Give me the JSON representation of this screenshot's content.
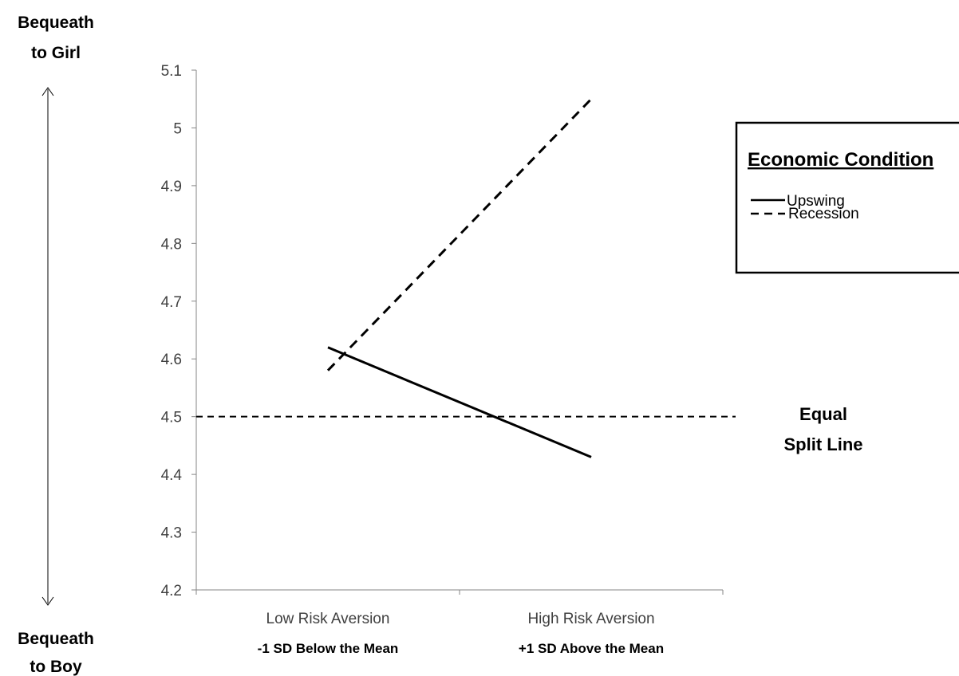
{
  "chart_data": {
    "type": "line",
    "categories": [
      "Low Risk Aversion",
      "High Risk Aversion"
    ],
    "category_sublabels": [
      "-1 SD Below the Mean",
      "+1 SD Above the Mean"
    ],
    "series": [
      {
        "name": "Upswing",
        "style": "solid",
        "values": [
          4.62,
          4.43
        ]
      },
      {
        "name": "Recession",
        "style": "dashed",
        "values": [
          4.58,
          5.05
        ]
      }
    ],
    "ylim": [
      4.2,
      5.1
    ],
    "yticks": [
      "4.2",
      "4.3",
      "4.4",
      "4.5",
      "4.6",
      "4.7",
      "4.8",
      "4.9",
      "5",
      "5.1"
    ],
    "reference_line": {
      "value": 4.5,
      "label_line1": "Equal",
      "label_line2": "Split Line"
    },
    "legend": {
      "title": "Economic Condition",
      "placement": "right",
      "entries": [
        "Upswing",
        "Recession"
      ]
    },
    "y_direction_labels": {
      "top_line1": "Bequeath",
      "top_line2": "to Girl",
      "bottom_line1": "Bequeath",
      "bottom_line2": "to Boy"
    },
    "grid": false
  }
}
